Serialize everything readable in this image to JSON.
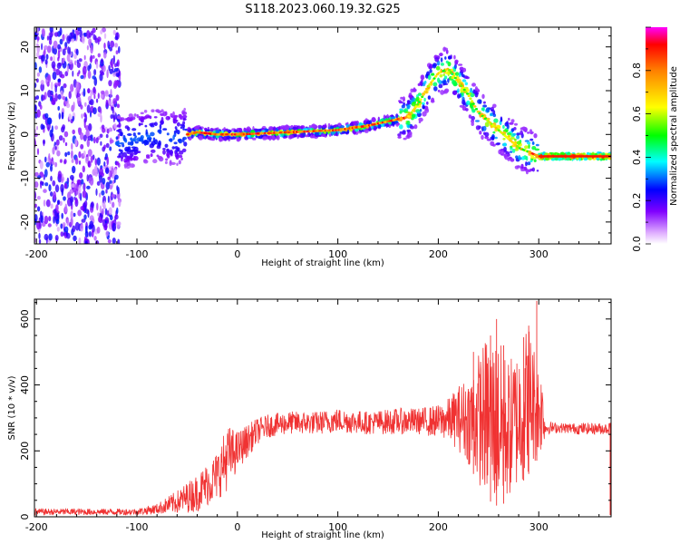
{
  "title": "S118.2023.060.19.32.G25",
  "chart_data": [
    {
      "type": "heatmap",
      "title": "",
      "xlabel": "Height of straight line (km)",
      "ylabel": "Frequency (Hz)",
      "xlim": [
        -202,
        372
      ],
      "ylim": [
        -25,
        24.5
      ],
      "xticks": [
        "-200",
        "-100",
        "0",
        "100",
        "200",
        "300"
      ],
      "yticks": [
        "-20",
        "-10",
        "0",
        "10",
        "20"
      ],
      "ridge": {
        "x": [
          -120,
          -100,
          -80,
          -60,
          -50,
          -40,
          -20,
          0,
          50,
          100,
          130,
          150,
          170,
          180,
          190,
          200,
          210,
          220,
          230,
          240,
          250,
          260,
          270,
          280,
          290,
          300,
          320,
          350,
          372
        ],
        "y": [
          -2,
          -1,
          0,
          -1,
          0,
          0.5,
          0,
          0,
          0.5,
          1,
          2,
          3,
          4,
          7,
          11,
          14,
          15,
          12,
          9,
          5,
          3,
          1,
          -1,
          -3,
          -4,
          -5,
          -5,
          -5,
          -5
        ]
      },
      "colorbar": {
        "label": "Normalized spectral amplitude",
        "range": [
          0,
          1
        ],
        "ticks": [
          "0.0",
          "0.2",
          "0.4",
          "0.6",
          "0.8"
        ]
      }
    },
    {
      "type": "line",
      "title": "",
      "xlabel": "Height of straight line (km)",
      "ylabel": "SNR (10 * v/v)",
      "xlim": [
        -202,
        372
      ],
      "ylim": [
        0,
        660
      ],
      "xticks": [
        "-200",
        "-100",
        "0",
        "100",
        "200",
        "300"
      ],
      "yticks": [
        "0",
        "200",
        "400",
        "600"
      ],
      "color": "#f03232",
      "series": [
        {
          "envelope": {
            "x": [
              -202,
              -150,
              -120,
              -100,
              -80,
              -60,
              -40,
              -20,
              -10,
              0,
              10,
              20,
              30,
              50,
              80,
              100,
              130,
              160,
              180,
              200,
              210,
              220,
              230,
              240,
              250,
              260,
              270,
              280,
              290,
              300,
              305,
              306,
              320,
              340,
              372
            ],
            "y_low": [
              5,
              5,
              5,
              5,
              8,
              10,
              15,
              50,
              80,
              140,
              180,
              220,
              240,
              250,
              250,
              255,
              250,
              250,
              250,
              240,
              230,
              200,
              160,
              100,
              50,
              30,
              50,
              90,
              130,
              180,
              210,
              250,
              255,
              250,
              250
            ],
            "y_high": [
              25,
              25,
              25,
              25,
              40,
              80,
              130,
              200,
              280,
              260,
              280,
              300,
              310,
              320,
              320,
              330,
              320,
              330,
              330,
              340,
              360,
              400,
              430,
              500,
              560,
              540,
              480,
              520,
              600,
              460,
              420,
              290,
              285,
              285,
              285
            ]
          },
          "spikes": [
            {
              "x": 235,
              "y": 500
            },
            {
              "x": 252,
              "y": 550
            },
            {
              "x": 258,
              "y": 600
            },
            {
              "x": 265,
              "y": 520
            },
            {
              "x": 285,
              "y": 545
            },
            {
              "x": 290,
              "y": 580
            },
            {
              "x": 298,
              "y": 655
            }
          ]
        }
      ]
    }
  ]
}
